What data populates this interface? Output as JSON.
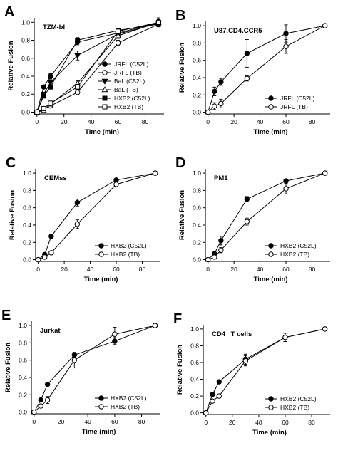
{
  "chart_data": [
    {
      "panel": "A",
      "type": "line",
      "title": "TZM-bl",
      "xlabel": "Time (min)",
      "ylabel": "Relative Fusion",
      "xlim": [
        -2,
        94
      ],
      "ylim": [
        -0.02,
        1.05
      ],
      "x_ticks": [
        0,
        20,
        40,
        60,
        80
      ],
      "y_ticks": [
        0.0,
        0.2,
        0.4,
        0.6,
        0.8,
        1.0
      ],
      "legend_position": "bottom-right",
      "series": [
        {
          "name": "JRFL (C52L)",
          "marker": "circle-filled",
          "x": [
            0,
            5,
            10,
            30,
            60,
            90
          ],
          "y": [
            0.0,
            0.28,
            0.4,
            0.78,
            0.88,
            1.0
          ],
          "err": [
            0,
            0.02,
            0.03,
            0.03,
            0.02,
            0.03
          ]
        },
        {
          "name": "JRFL (TB)",
          "marker": "circle-open",
          "x": [
            0,
            5,
            10,
            30,
            60,
            90
          ],
          "y": [
            0.0,
            0.03,
            0.07,
            0.22,
            0.77,
            0.98
          ],
          "err": [
            0,
            0.01,
            0.01,
            0.02,
            0.03,
            0.03
          ]
        },
        {
          "name": "BaL (C52L)",
          "marker": "triangle-down-filled",
          "x": [
            0,
            5,
            10,
            30,
            60,
            90
          ],
          "y": [
            0.0,
            0.2,
            0.33,
            0.63,
            0.87,
            0.99
          ],
          "err": [
            0,
            0.02,
            0.03,
            0.05,
            0.03,
            0.03
          ]
        },
        {
          "name": "BaL (TB)",
          "marker": "triangle-up-open",
          "x": [
            0,
            5,
            10,
            30,
            60,
            90
          ],
          "y": [
            0.0,
            0.02,
            0.09,
            0.32,
            0.85,
            1.0
          ],
          "err": [
            0,
            0.01,
            0.02,
            0.03,
            0.03,
            0.03
          ]
        },
        {
          "name": "HXB2 (C52L)",
          "marker": "square-filled",
          "x": [
            0,
            5,
            10,
            30,
            60,
            90
          ],
          "y": [
            0.0,
            0.18,
            0.28,
            0.8,
            0.91,
            0.98
          ],
          "err": [
            0,
            0.02,
            0.02,
            0.03,
            0.02,
            0.03
          ]
        },
        {
          "name": "HXB2 (TB)",
          "marker": "square-open",
          "x": [
            0,
            5,
            10,
            30,
            60,
            90
          ],
          "y": [
            0.0,
            0.04,
            0.1,
            0.28,
            0.9,
            1.0
          ],
          "err": [
            0,
            0.01,
            0.02,
            0.03,
            0.02,
            0.05
          ]
        }
      ]
    },
    {
      "panel": "B",
      "type": "line",
      "title": "U87.CD4.CCR5",
      "xlabel": "Time (min)",
      "ylabel": "Relative Fusion",
      "xlim": [
        -2,
        94
      ],
      "ylim": [
        -0.02,
        1.05
      ],
      "x_ticks": [
        0,
        20,
        40,
        60,
        80
      ],
      "y_ticks": [
        0.0,
        0.2,
        0.4,
        0.6,
        0.8,
        1.0
      ],
      "legend_position": "bottom-right",
      "series": [
        {
          "name": "JRFL (C52L)",
          "marker": "circle-filled",
          "x": [
            0,
            5,
            10,
            30,
            60,
            90
          ],
          "y": [
            0.0,
            0.24,
            0.35,
            0.68,
            0.91,
            1.0
          ],
          "err": [
            0,
            0.05,
            0.04,
            0.16,
            0.1,
            0.0
          ]
        },
        {
          "name": "JRFL (TB)",
          "marker": "circle-open",
          "x": [
            0,
            5,
            10,
            30,
            60,
            90
          ],
          "y": [
            0.0,
            0.07,
            0.1,
            0.39,
            0.76,
            1.0
          ],
          "err": [
            0,
            0.04,
            0.05,
            0.03,
            0.08,
            0.0
          ]
        }
      ]
    },
    {
      "panel": "C",
      "type": "line",
      "title": "CEMss",
      "xlabel": "Time (min)",
      "ylabel": "Relative Fusion",
      "xlim": [
        -2,
        94
      ],
      "ylim": [
        -0.02,
        1.05
      ],
      "x_ticks": [
        0,
        20,
        40,
        60,
        80
      ],
      "y_ticks": [
        0.0,
        0.2,
        0.4,
        0.6,
        0.8,
        1.0
      ],
      "legend_position": "bottom-right",
      "series": [
        {
          "name": "HXB2 (C52L)",
          "marker": "circle-filled",
          "x": [
            0,
            5,
            10,
            30,
            60,
            90
          ],
          "y": [
            0.0,
            0.06,
            0.27,
            0.66,
            0.92,
            1.0
          ],
          "err": [
            0,
            0.01,
            0.02,
            0.04,
            0.02,
            0.0
          ]
        },
        {
          "name": "HXB2 (TB)",
          "marker": "circle-open",
          "x": [
            0,
            5,
            10,
            30,
            60,
            90
          ],
          "y": [
            0.0,
            0.03,
            0.08,
            0.41,
            0.87,
            1.0
          ],
          "err": [
            0,
            0.01,
            0.02,
            0.05,
            0.02,
            0.0
          ]
        }
      ]
    },
    {
      "panel": "D",
      "type": "line",
      "title": "PM1",
      "xlabel": "Time (min)",
      "ylabel": "Relative Fusion",
      "xlim": [
        -2,
        94
      ],
      "ylim": [
        -0.02,
        1.05
      ],
      "x_ticks": [
        0,
        20,
        40,
        60,
        80
      ],
      "y_ticks": [
        0.0,
        0.2,
        0.4,
        0.6,
        0.8,
        1.0
      ],
      "legend_position": "bottom-right",
      "series": [
        {
          "name": "HXB2 (C52L)",
          "marker": "circle-filled",
          "x": [
            0,
            5,
            10,
            30,
            60,
            90
          ],
          "y": [
            0.0,
            0.07,
            0.22,
            0.7,
            0.91,
            1.0
          ],
          "err": [
            0,
            0.01,
            0.05,
            0.03,
            0.02,
            0.0
          ]
        },
        {
          "name": "HXB2 (TB)",
          "marker": "circle-open",
          "x": [
            0,
            5,
            10,
            30,
            60,
            90
          ],
          "y": [
            0.0,
            0.03,
            0.11,
            0.44,
            0.82,
            1.0
          ],
          "err": [
            0,
            0.01,
            0.03,
            0.04,
            0.06,
            0.0
          ]
        }
      ]
    },
    {
      "panel": "E",
      "type": "line",
      "title": "Jurkat",
      "xlabel": "Time (min)",
      "ylabel": "Relative Fusion",
      "xlim": [
        -2,
        94
      ],
      "ylim": [
        -0.02,
        1.05
      ],
      "x_ticks": [
        0,
        20,
        40,
        60,
        80
      ],
      "y_ticks": [
        0.0,
        0.2,
        0.4,
        0.6,
        0.8,
        1.0
      ],
      "legend_position": "bottom-right",
      "series": [
        {
          "name": "HXB2 (C52L)",
          "marker": "circle-filled",
          "x": [
            0,
            5,
            10,
            30,
            60,
            90
          ],
          "y": [
            0.0,
            0.14,
            0.32,
            0.66,
            0.82,
            1.0
          ],
          "err": [
            0,
            0.02,
            0.02,
            0.03,
            0.04,
            0.0
          ]
        },
        {
          "name": "HXB2 (TB)",
          "marker": "circle-open",
          "x": [
            0,
            5,
            10,
            30,
            60,
            90
          ],
          "y": [
            0.0,
            0.07,
            0.14,
            0.6,
            0.9,
            1.0
          ],
          "err": [
            0,
            0.02,
            0.04,
            0.09,
            0.08,
            0.0
          ]
        }
      ]
    },
    {
      "panel": "F",
      "type": "line",
      "title": "CD4⁺ T cells",
      "xlabel": "Time (min)",
      "ylabel": "Relative Fusion",
      "xlim": [
        -2,
        94
      ],
      "ylim": [
        -0.02,
        1.05
      ],
      "x_ticks": [
        0,
        20,
        40,
        60,
        80
      ],
      "y_ticks": [
        0.0,
        0.2,
        0.4,
        0.6,
        0.8,
        1.0
      ],
      "legend_position": "bottom-right",
      "series": [
        {
          "name": "HXB2 (C52L)",
          "marker": "circle-filled",
          "x": [
            0,
            5,
            10,
            30,
            60,
            90
          ],
          "y": [
            0.0,
            0.22,
            0.37,
            0.64,
            0.9,
            1.0
          ],
          "err": [
            0,
            0.02,
            0.02,
            0.06,
            0.05,
            0.0
          ]
        },
        {
          "name": "HXB2 (TB)",
          "marker": "circle-open",
          "x": [
            0,
            5,
            10,
            30,
            60,
            90
          ],
          "y": [
            0.0,
            0.14,
            0.2,
            0.62,
            0.9,
            1.0
          ],
          "err": [
            0,
            0.02,
            0.02,
            0.06,
            0.05,
            0.0
          ]
        }
      ]
    }
  ]
}
